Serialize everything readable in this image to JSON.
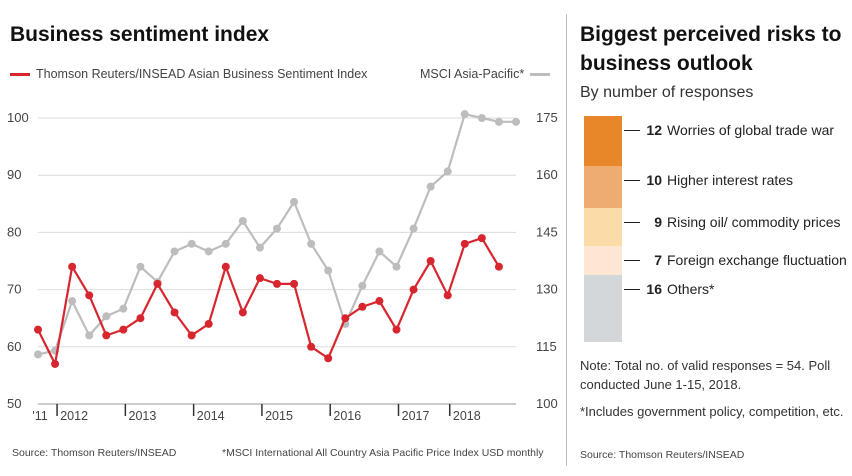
{
  "left_panel": {
    "title": "Business sentiment index",
    "source": "Source: Thomson Reuters/INSEAD",
    "footnote": "*MSCI International All Country Asia Pacific Price Index USD monthly"
  },
  "right_panel": {
    "title": "Biggest perceived risks to business outlook",
    "subtitle": "By number of responses",
    "note": "Note: Total no. of valid responses = 54. Poll conducted June 1-15, 2018.",
    "includes": "*Includes government policy, competition, etc.",
    "source": "Source: Thomson Reuters/INSEAD"
  },
  "colors": {
    "sentiment": "#d7262e",
    "msci": "#bdbdbd",
    "risk_trade_war": "#e8862a",
    "risk_interest": "#efac70",
    "risk_oil": "#fbdca8",
    "risk_fx": "#fde7d2",
    "risk_others": "#d4d7da"
  },
  "chart_data": [
    {
      "type": "line",
      "title": "Business sentiment index",
      "x_tick_labels": [
        "'11",
        "2012",
        "2013",
        "2014",
        "2015",
        "2016",
        "2017",
        "2018"
      ],
      "x_ticks_at": [
        0,
        2,
        6,
        10,
        14,
        18,
        22,
        25
      ],
      "y_left": {
        "lim": [
          50,
          100
        ],
        "ticks": [
          50,
          60,
          70,
          80,
          90,
          100
        ]
      },
      "y_right": {
        "lim": [
          100,
          175
        ],
        "ticks": [
          100,
          115,
          130,
          145,
          160,
          175
        ]
      },
      "series": [
        {
          "name": "Thomson Reuters/INSEAD Asian Business Sentiment Index",
          "axis": "left",
          "x": [
            0,
            1,
            2,
            3,
            4,
            5,
            6,
            7,
            8,
            9,
            10,
            11,
            12,
            13,
            14,
            15,
            16,
            17,
            18,
            19,
            20,
            21,
            22,
            23,
            24,
            25,
            26,
            27,
            28
          ],
          "values": [
            63,
            57,
            74,
            69,
            62,
            63,
            65,
            71,
            66,
            62,
            64,
            74,
            66,
            72,
            71,
            71,
            60,
            58,
            65,
            67,
            68,
            63,
            70,
            75,
            69,
            78,
            79,
            74,
            null
          ]
        },
        {
          "name": "MSCI Asia-Pacific*",
          "axis": "right",
          "x": [
            0,
            1,
            2,
            3,
            4,
            5,
            6,
            7,
            8,
            9,
            10,
            11,
            12,
            13,
            14,
            15,
            16,
            17,
            18,
            19,
            20,
            21,
            22,
            23,
            24,
            25,
            26,
            27,
            28
          ],
          "values": [
            113,
            114,
            127,
            118,
            123,
            125,
            136,
            132,
            140,
            142,
            140,
            142,
            148,
            141,
            146,
            153,
            142,
            135,
            121,
            131,
            140,
            136,
            146,
            157,
            161,
            176,
            175,
            174,
            174
          ]
        }
      ]
    },
    {
      "type": "bar",
      "title": "Biggest perceived risks to business outlook",
      "stacked": true,
      "categories": [
        "Worries of global trade war",
        "Higher interest rates",
        "Rising oil/ commodity prices",
        "Foreign exchange fluctuation",
        "Others*"
      ],
      "values": [
        12,
        10,
        9,
        7,
        16
      ],
      "total": 54
    }
  ]
}
